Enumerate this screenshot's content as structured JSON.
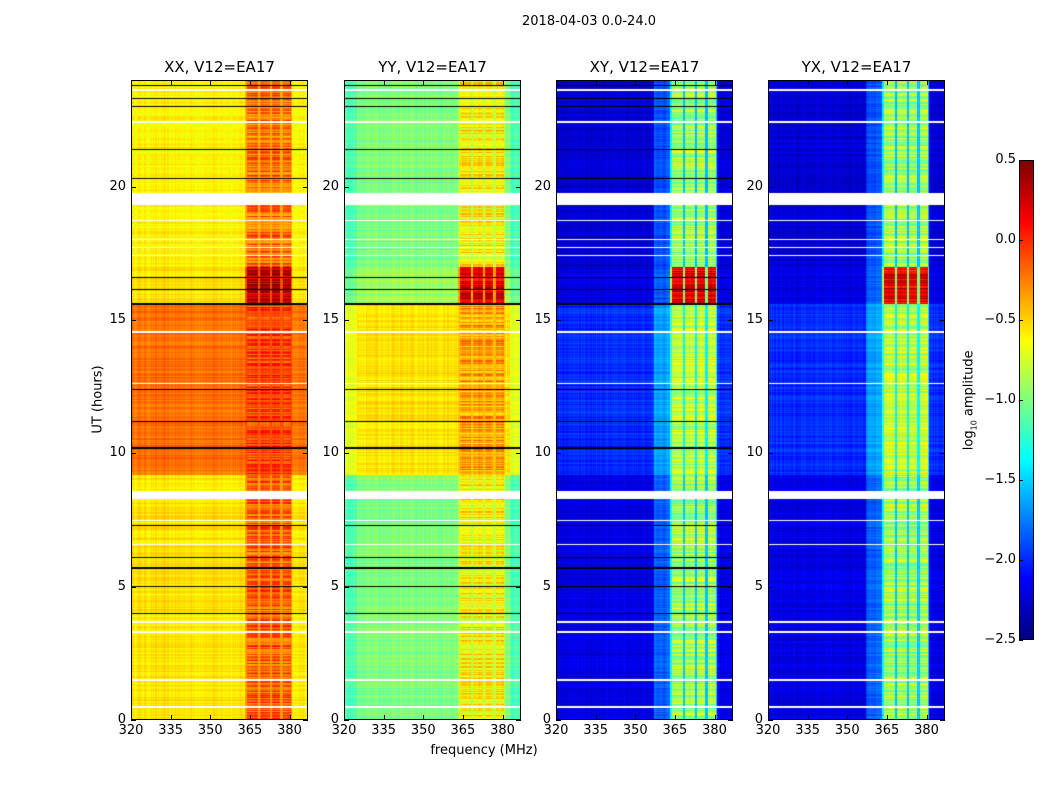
{
  "chart_data": {
    "type": "heatmap",
    "title": "2018-04-03 0.0-24.0",
    "xlabel": "frequency (MHz)",
    "ylabel": "UT (hours)",
    "xlim": [
      320,
      387
    ],
    "ylim": [
      0,
      24
    ],
    "xticks": [
      "320",
      "335",
      "350",
      "365",
      "380"
    ],
    "yticks": [
      "0",
      "5",
      "10",
      "15",
      "20"
    ],
    "colormap": "jet",
    "colorbar": {
      "label_main": "log",
      "label_sub": "10",
      "label_rest": " amplitude",
      "range": [
        -2.5,
        0.5
      ],
      "ticks": [
        "0.5",
        "0.0",
        "−0.5",
        "−1.0",
        "−1.5",
        "−2.0",
        "−2.5"
      ]
    },
    "rfi_channels_mhz": [
      [
        364,
        368
      ],
      [
        369,
        372.5
      ],
      [
        373.5,
        376.5
      ],
      [
        377.5,
        380.5
      ]
    ],
    "flagged_hours": [
      [
        8.3,
        8.6
      ],
      [
        19.3,
        19.75
      ],
      [
        0.45,
        0.52
      ],
      [
        1.45,
        1.52
      ],
      [
        3.25,
        3.32
      ],
      [
        3.65,
        3.7
      ],
      [
        6.55,
        6.6
      ],
      [
        7.45,
        7.5
      ],
      [
        17.4,
        17.45
      ],
      [
        17.7,
        17.75
      ],
      [
        18.0,
        18.05
      ],
      [
        18.7,
        18.75
      ],
      [
        22.4,
        22.47
      ],
      [
        23.6,
        23.65
      ],
      [
        14.5,
        14.6
      ],
      [
        12.6,
        12.65
      ]
    ],
    "dropout_hours": [
      4.0,
      5.0,
      5.7,
      6.1,
      7.3,
      10.2,
      11.2,
      12.4,
      15.6,
      16.15,
      16.6,
      20.3,
      21.4,
      23.0,
      23.3,
      23.8
    ],
    "panels": [
      {
        "title": "XX, V12=EA17",
        "segments": [
          {
            "t": [
              0,
              9.2
            ],
            "base": -0.55,
            "rfi": -0.15
          },
          {
            "t": [
              9.2,
              15.6
            ],
            "base": -0.2,
            "rfi": -0.05
          },
          {
            "t": [
              15.6,
              17.0
            ],
            "base": -0.55,
            "rfi": 0.3
          },
          {
            "t": [
              17.0,
              24
            ],
            "base": -0.6,
            "rfi": -0.2
          }
        ]
      },
      {
        "title": "YY, V12=EA17",
        "segments": [
          {
            "t": [
              0,
              9.2
            ],
            "base": -1.0,
            "rfi": -0.6
          },
          {
            "t": [
              9.2,
              15.6
            ],
            "base": -0.55,
            "rfi": -0.35
          },
          {
            "t": [
              15.6,
              17.0
            ],
            "base": -0.9,
            "rfi": 0.2
          },
          {
            "t": [
              17.0,
              24
            ],
            "base": -1.0,
            "rfi": -0.6
          }
        ]
      },
      {
        "title": "XY, V12=EA17",
        "segments": [
          {
            "t": [
              0,
              9.2
            ],
            "base": -2.2,
            "rfi": -0.9
          },
          {
            "t": [
              9.2,
              15.6
            ],
            "base": -2.0,
            "rfi": -0.8
          },
          {
            "t": [
              15.6,
              17.0
            ],
            "base": -2.2,
            "rfi": 0.2
          },
          {
            "t": [
              17.0,
              24
            ],
            "base": -2.25,
            "rfi": -0.9
          }
        ]
      },
      {
        "title": "YX, V12=EA17",
        "segments": [
          {
            "t": [
              0,
              9.2
            ],
            "base": -2.2,
            "rfi": -0.9
          },
          {
            "t": [
              9.2,
              15.6
            ],
            "base": -2.0,
            "rfi": -0.8
          },
          {
            "t": [
              15.6,
              17.0
            ],
            "base": -2.2,
            "rfi": 0.2
          },
          {
            "t": [
              17.0,
              24
            ],
            "base": -2.25,
            "rfi": -0.9
          }
        ]
      }
    ]
  }
}
